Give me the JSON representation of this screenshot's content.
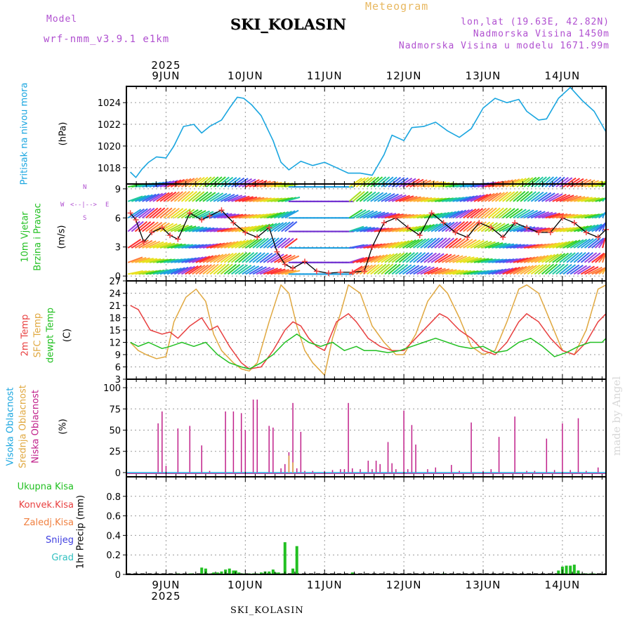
{
  "header": {
    "model_label": "Model",
    "model_name": "wrf-nmm_v3.9.1 e1km",
    "product": "Meteogram",
    "station": "SKI_KOLASIN",
    "lonlat": "lon,lat (19.63E, 42.82N)",
    "altitude": "Nadmorska Visina 1450m",
    "model_altitude": "Nadmorska Visina u modelu 1671.99m"
  },
  "footer": {
    "station": "SKI_KOLASIN",
    "credit": "made by Angel"
  },
  "time_axis": {
    "year": "2025",
    "day_labels": [
      "9JUN",
      "10JUN",
      "11JUN",
      "12JUN",
      "13JUN",
      "14JUN"
    ],
    "range_days": [
      -0.5,
      5.55
    ]
  },
  "panels": {
    "pressure": {
      "ylabel": "Pritisak na nivou mora",
      "unit": "(hPa)",
      "color": "#1aa6e0"
    },
    "wind": {
      "ylabel_1": "10m Vjetar",
      "ylabel_2": "Brzina i Pravac",
      "unit": "(m/s)",
      "label_color": "#22c022",
      "compass": {
        "n": "N",
        "s": "S",
        "w": "W",
        "e": "E"
      }
    },
    "temp": {
      "lab_2m": "2m Temp",
      "lab_sfc": "SFC Temp",
      "lab_dew": "dewpt Temp",
      "unit": "(C)",
      "c_2m": "#e84040",
      "c_sfc": "#e0a840",
      "c_dew": "#22c022"
    },
    "cloud": {
      "lab_high": "Visoka Oblacnost",
      "lab_mid": "Srednja Oblacnost",
      "lab_low": "Niska Oblacnost",
      "unit": "(%)",
      "c_high": "#1aa6e0",
      "c_mid": "#e0a840",
      "c_low": "#c0208a"
    },
    "precip": {
      "ylabel": "1hr Precip (mm)",
      "legend": [
        "Ukupna Kisa",
        "Konvek.Kisa",
        "Zaledj.Kisa",
        "Snijeg",
        "Grad"
      ],
      "legend_colors": [
        "#22c022",
        "#e84040",
        "#f08040",
        "#4040e0",
        "#30c0c0"
      ]
    }
  },
  "chart_data": [
    {
      "type": "line",
      "title": "",
      "xlabel": "",
      "ylabel": "Pritisak na nivou mora (hPa)",
      "ylim": [
        1016.5,
        1025.5
      ],
      "yticks": [
        1018,
        1020,
        1022,
        1024
      ],
      "grid": true,
      "series": [
        {
          "name": "",
          "x_day_offset": [
            -0.45,
            -0.38,
            -0.3,
            -0.22,
            -0.12,
            0.0,
            0.1,
            0.22,
            0.35,
            0.45,
            0.55,
            0.7,
            0.8,
            0.9,
            0.98,
            1.08,
            1.2,
            1.35,
            1.45,
            1.55,
            1.7,
            1.85,
            2.0,
            2.15,
            2.3,
            2.45,
            2.6,
            2.75,
            2.85,
            3.0,
            3.1,
            3.25,
            3.4,
            3.55,
            3.7,
            3.85,
            4.0,
            4.15,
            4.3,
            4.45,
            4.55,
            4.7,
            4.8,
            4.95,
            5.1,
            5.25,
            5.4,
            5.55
          ],
          "values": [
            1017.6,
            1017.1,
            1017.9,
            1018.5,
            1019.0,
            1018.9,
            1020.0,
            1021.8,
            1022.0,
            1021.2,
            1021.8,
            1022.4,
            1023.5,
            1024.5,
            1024.4,
            1023.8,
            1022.8,
            1020.5,
            1018.5,
            1017.8,
            1018.6,
            1018.2,
            1018.5,
            1018.0,
            1017.5,
            1017.5,
            1017.3,
            1019.2,
            1021.0,
            1020.5,
            1021.7,
            1021.8,
            1022.2,
            1021.4,
            1020.8,
            1021.6,
            1023.5,
            1024.4,
            1024.0,
            1024.3,
            1023.2,
            1022.4,
            1022.5,
            1024.4,
            1025.4,
            1024.2,
            1023.2,
            1021.3
          ]
        }
      ]
    },
    {
      "type": "line",
      "title": "",
      "xlabel": "",
      "ylabel": "10m Vjetar Brzina i Pravac (m/s)",
      "ylim": [
        -0.5,
        9.5
      ],
      "yticks": [
        0,
        3,
        6,
        9
      ],
      "grid": true,
      "series": [
        {
          "name": "",
          "x_day_offset": [
            -0.45,
            -0.38,
            -0.28,
            -0.18,
            -0.05,
            0.05,
            0.15,
            0.3,
            0.45,
            0.55,
            0.7,
            0.85,
            1.0,
            1.15,
            1.3,
            1.4,
            1.5,
            1.6,
            1.75,
            1.9,
            2.05,
            2.2,
            2.35,
            2.5,
            2.6,
            2.75,
            2.9,
            3.05,
            3.2,
            3.35,
            3.5,
            3.65,
            3.8,
            3.95,
            4.1,
            4.25,
            4.4,
            4.55,
            4.7,
            4.85,
            5.0,
            5.15,
            5.3,
            5.45,
            5.55
          ],
          "values": [
            6.5,
            5.8,
            3.5,
            4.5,
            5.0,
            4.2,
            3.8,
            6.5,
            5.8,
            6.2,
            6.8,
            5.5,
            4.5,
            4.0,
            5.0,
            2.5,
            1.2,
            0.8,
            1.5,
            0.5,
            0.3,
            0.4,
            0.4,
            0.5,
            3.0,
            5.5,
            6.0,
            5.0,
            4.2,
            6.5,
            5.5,
            4.5,
            4.0,
            5.5,
            5.0,
            4.0,
            5.5,
            5.0,
            4.5,
            4.5,
            6.0,
            5.5,
            4.5,
            4.0,
            4.8
          ]
        }
      ]
    },
    {
      "type": "line",
      "title": "",
      "xlabel": "",
      "ylabel": "Temp (C)",
      "ylim": [
        3,
        27
      ],
      "yticks": [
        3,
        6,
        9,
        12,
        15,
        18,
        21,
        24,
        27
      ],
      "grid": true,
      "series": [
        {
          "name": "2m Temp",
          "x_day_offset": [
            -0.45,
            -0.35,
            -0.2,
            -0.05,
            0.05,
            0.15,
            0.3,
            0.45,
            0.55,
            0.65,
            0.8,
            0.95,
            1.05,
            1.2,
            1.35,
            1.5,
            1.6,
            1.7,
            1.8,
            1.9,
            2.0,
            2.15,
            2.3,
            2.4,
            2.55,
            2.7,
            2.85,
            3.0,
            3.15,
            3.3,
            3.45,
            3.55,
            3.7,
            3.85,
            4.0,
            4.15,
            4.3,
            4.45,
            4.55,
            4.7,
            4.85,
            5.0,
            5.15,
            5.3,
            5.45,
            5.55
          ],
          "values": [
            21,
            20,
            15,
            14,
            14.5,
            13,
            16,
            18,
            15,
            16,
            11,
            7,
            5.5,
            6,
            10,
            15,
            17,
            16,
            13,
            11,
            10,
            17,
            19,
            17,
            13,
            11,
            10,
            10,
            13,
            16,
            19,
            18,
            15,
            13,
            10,
            9,
            12,
            17,
            19,
            17,
            13,
            10,
            9,
            12,
            17,
            19
          ]
        },
        {
          "name": "SFC Temp",
          "x_day_offset": [
            -0.45,
            -0.35,
            -0.25,
            -0.12,
            0.0,
            0.1,
            0.25,
            0.38,
            0.5,
            0.6,
            0.7,
            0.85,
            0.95,
            1.05,
            1.15,
            1.3,
            1.45,
            1.55,
            1.65,
            1.75,
            1.85,
            2.0,
            2.1,
            2.2,
            2.3,
            2.45,
            2.6,
            2.75,
            2.9,
            3.0,
            3.15,
            3.3,
            3.45,
            3.55,
            3.7,
            3.85,
            4.0,
            4.15,
            4.3,
            4.45,
            4.55,
            4.7,
            4.85,
            5.0,
            5.15,
            5.3,
            5.45,
            5.55
          ],
          "values": [
            12,
            10,
            9,
            8,
            8.5,
            17,
            23,
            25,
            22,
            14,
            10,
            7,
            5.5,
            5,
            7,
            17,
            26,
            24,
            16,
            10,
            7,
            4,
            13,
            19,
            26,
            24,
            16,
            12,
            9,
            9,
            14,
            22,
            26,
            24,
            18,
            11,
            9,
            10,
            17,
            25,
            26,
            24,
            17,
            10,
            9,
            15,
            25,
            26
          ]
        },
        {
          "name": "dewpt Temp",
          "x_day_offset": [
            -0.45,
            -0.35,
            -0.22,
            -0.05,
            0.05,
            0.2,
            0.35,
            0.5,
            0.65,
            0.8,
            0.95,
            1.05,
            1.2,
            1.35,
            1.5,
            1.65,
            1.8,
            1.95,
            2.1,
            2.25,
            2.4,
            2.5,
            2.65,
            2.8,
            2.95,
            3.1,
            3.25,
            3.4,
            3.55,
            3.7,
            3.85,
            4.0,
            4.15,
            4.3,
            4.45,
            4.6,
            4.75,
            4.9,
            5.05,
            5.2,
            5.35,
            5.5,
            5.55
          ],
          "values": [
            12,
            11,
            12,
            10.5,
            11,
            12,
            11,
            12,
            9,
            7,
            6,
            5.5,
            7,
            9,
            12,
            14,
            12,
            11,
            12,
            10,
            11,
            10,
            10,
            9.5,
            10,
            11,
            12,
            13,
            12,
            11,
            10.5,
            11,
            9.5,
            10,
            12,
            13,
            11,
            8.5,
            9.5,
            11,
            12,
            12,
            13
          ]
        }
      ]
    },
    {
      "type": "bar",
      "title": "",
      "xlabel": "",
      "ylabel": "Oblacnost (%)",
      "ylim": [
        -5,
        110
      ],
      "yticks": [
        0,
        25,
        50,
        75,
        100
      ],
      "grid": true,
      "series": [
        {
          "name": "Niska Oblacnost",
          "x_day_offset": [
            -0.1,
            -0.05,
            0.0,
            0.15,
            0.3,
            0.45,
            0.55,
            0.75,
            0.85,
            0.95,
            1.0,
            1.1,
            1.15,
            1.3,
            1.35,
            1.45,
            1.5,
            1.55,
            1.6,
            1.65,
            1.7,
            1.75,
            1.85,
            2.0,
            2.1,
            2.2,
            2.25,
            2.3,
            2.35,
            2.45,
            2.55,
            2.6,
            2.65,
            2.7,
            2.8,
            2.85,
            2.9,
            3.0,
            3.05,
            3.1,
            3.15,
            3.3,
            3.4,
            3.6,
            3.7,
            3.85,
            4.0,
            4.1,
            4.2,
            4.4,
            4.55,
            4.65,
            4.8,
            4.9,
            5.0,
            5.1,
            5.2,
            5.3,
            5.45
          ],
          "values": [
            58,
            72,
            8,
            52,
            55,
            32,
            2,
            72,
            72,
            70,
            50,
            86,
            86,
            55,
            53,
            5,
            10,
            24,
            82,
            5,
            48,
            2,
            2,
            2,
            3,
            4,
            4,
            82,
            5,
            4,
            14,
            4,
            14,
            10,
            36,
            11,
            4,
            73,
            4,
            56,
            33,
            4,
            6,
            9,
            2,
            59,
            2,
            4,
            42,
            66,
            2,
            2,
            40,
            3,
            58,
            3,
            64,
            2,
            6
          ]
        },
        {
          "name": "Srednja Oblacnost",
          "x_day_offset": [
            1.55,
            1.6
          ],
          "values": [
            20,
            12
          ]
        }
      ]
    },
    {
      "type": "bar",
      "title": "",
      "xlabel": "",
      "ylabel": "1hr Precip (mm)",
      "ylim": [
        0,
        1.0
      ],
      "yticks": [
        0,
        0.2,
        0.4,
        0.6,
        0.8
      ],
      "grid": true,
      "series": [
        {
          "name": "Ukupna Kisa",
          "x_day_offset": [
            0.15,
            0.3,
            0.32,
            0.45,
            0.5,
            0.55,
            0.6,
            0.65,
            0.7,
            0.75,
            0.8,
            0.85,
            0.88,
            0.92,
            0.98,
            1.05,
            1.1,
            1.15,
            1.2,
            1.25,
            1.3,
            1.35,
            1.38,
            1.42,
            1.45,
            1.5,
            1.6,
            1.65,
            2.35,
            3.5,
            4.95,
            5.0,
            5.05,
            5.1,
            5.15,
            5.2,
            5.25,
            5.3,
            5.35,
            5.4
          ],
          "values": [
            0.01,
            0.01,
            0.01,
            0.07,
            0.06,
            0.01,
            0.02,
            0.02,
            0.03,
            0.05,
            0.06,
            0.04,
            0.04,
            0.02,
            0.01,
            0.01,
            0.01,
            0.01,
            0.02,
            0.03,
            0.03,
            0.05,
            0.02,
            0.02,
            0.01,
            0.33,
            0.06,
            0.29,
            0.02,
            0.01,
            0.04,
            0.08,
            0.09,
            0.09,
            0.1,
            0.04,
            0.01,
            0.01,
            0.01,
            0.01
          ]
        }
      ]
    }
  ]
}
